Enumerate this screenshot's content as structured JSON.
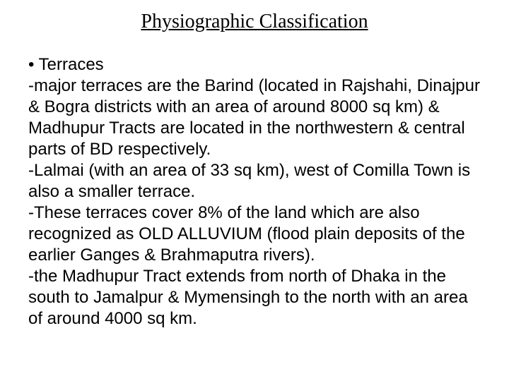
{
  "slide": {
    "title": "Physiographic Classification",
    "bullet_label": "• Terraces",
    "para1": "-major terraces are the Barind (located in Rajshahi, Dinajpur & Bogra districts with an area of around 8000 sq km) & Madhupur Tracts are located in the northwestern & central parts of BD respectively.",
    "para2": "-Lalmai (with an area of 33 sq km), west of Comilla Town is also a smaller terrace.",
    "para3": "-These terraces cover 8% of the land which are also recognized as OLD ALLUVIUM (flood plain deposits of the earlier Ganges & Brahmaputra rivers).",
    "para4": "-the Madhupur Tract extends from north of Dhaka in the south to Jamalpur & Mymensingh to the north with an area of around 4000 sq km."
  },
  "styling": {
    "background_color": "#ffffff",
    "title_fontsize": 28,
    "title_color": "#000000",
    "title_font_family": "Times New Roman",
    "title_underline": true,
    "body_fontsize": 24,
    "body_color": "#000000",
    "body_font_family": "Arial",
    "line_height": 1.25,
    "slide_width": 720,
    "slide_height": 540
  }
}
